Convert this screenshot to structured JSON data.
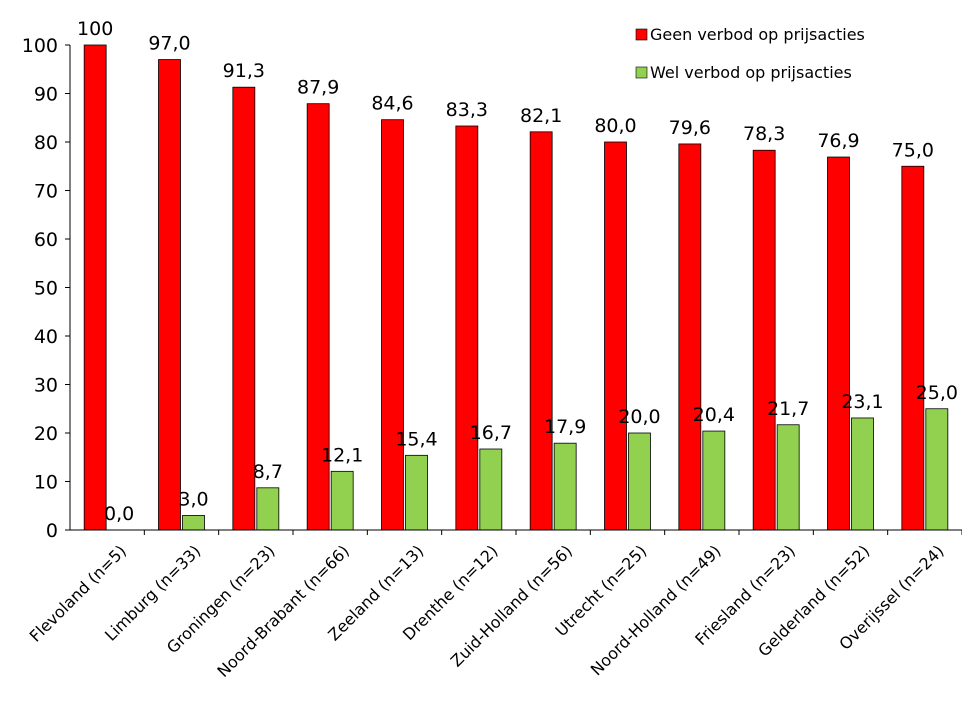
{
  "chart_data": {
    "type": "bar",
    "title": "",
    "xlabel": "",
    "ylabel": "",
    "ylim": [
      0,
      100
    ],
    "yticks": [
      "0",
      "10",
      "20",
      "30",
      "40",
      "50",
      "60",
      "70",
      "80",
      "90",
      "100"
    ],
    "grid": false,
    "legend_position": "top-right",
    "categories": [
      "Flevoland (n=5)",
      "Limburg (n=33)",
      "Groningen (n=23)",
      "Noord-Brabant (n=66)",
      "Zeeland (n=13)",
      "Drenthe (n=12)",
      "Zuid-Holland (n=56)",
      "Utrecht (n=25)",
      "Noord-Holland (n=49)",
      "Friesland (n=23)",
      "Gelderland (n=52)",
      "Overijssel (n=24)"
    ],
    "series": [
      {
        "name": "Geen verbod op prijsacties",
        "color": "#ff0000",
        "values": [
          100,
          97.0,
          91.3,
          87.9,
          84.6,
          83.3,
          82.1,
          80.0,
          79.6,
          78.3,
          76.9,
          75.0
        ],
        "labels": [
          "100",
          "97,0",
          "91,3",
          "87,9",
          "84,6",
          "83,3",
          "82,1",
          "80,0",
          "79,6",
          "78,3",
          "76,9",
          "75,0"
        ]
      },
      {
        "name": "Wel verbod op prijsacties",
        "color": "#92d050",
        "values": [
          0.0,
          3.0,
          8.7,
          12.1,
          15.4,
          16.7,
          17.9,
          20.0,
          20.4,
          21.7,
          23.1,
          25.0
        ],
        "labels": [
          "0,0",
          "3,0",
          "8,7",
          "12,1",
          "15,4",
          "16,7",
          "17,9",
          "20,0",
          "20,4",
          "21,7",
          "23,1",
          "25,0"
        ]
      }
    ]
  }
}
